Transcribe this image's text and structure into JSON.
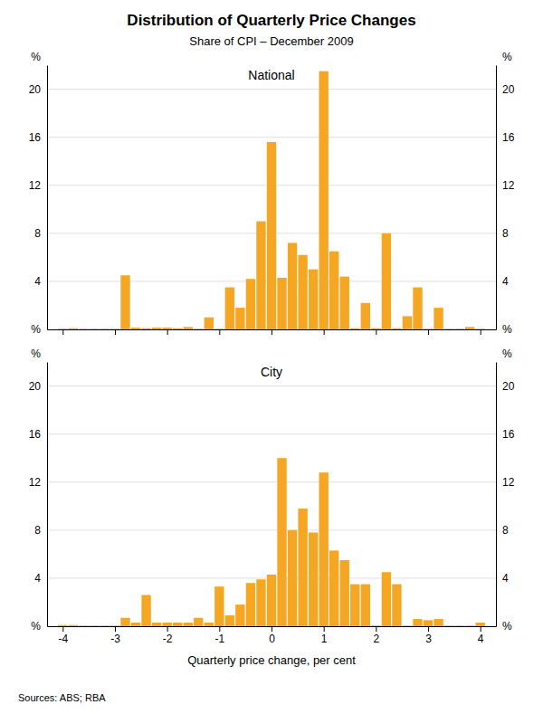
{
  "chart_data": [
    {
      "type": "bar",
      "title": "Distribution of Quarterly Price Changes",
      "subtitle": "Share of CPI – December 2009",
      "x": [
        -4.0,
        -3.8,
        -3.6,
        -3.4,
        -3.2,
        -3.0,
        -2.8,
        -2.6,
        -2.4,
        -2.2,
        -2.0,
        -1.8,
        -1.6,
        -1.4,
        -1.2,
        -1.0,
        -0.8,
        -0.6,
        -0.4,
        -0.2,
        0.0,
        0.2,
        0.4,
        0.6,
        0.8,
        1.0,
        1.2,
        1.4,
        1.6,
        1.8,
        2.0,
        2.2,
        2.4,
        2.6,
        2.8,
        3.0,
        3.2,
        3.4,
        3.6,
        3.8,
        4.0
      ],
      "series": [
        {
          "name": "National",
          "color": "#F5A623",
          "values": [
            0.05,
            0.1,
            0.05,
            0.05,
            0.05,
            0.05,
            4.5,
            0.15,
            0.1,
            0.15,
            0.15,
            0.1,
            0.2,
            0.05,
            1.0,
            0.05,
            3.5,
            1.8,
            4.2,
            9.0,
            15.6,
            4.3,
            7.2,
            6.2,
            5.0,
            21.5,
            6.5,
            4.4,
            0.1,
            2.2,
            0.1,
            8.0,
            0.1,
            1.1,
            3.5,
            0.05,
            1.8,
            0.05,
            0.05,
            0.2,
            0.05
          ]
        }
      ],
      "xlim": [
        -4.3,
        4.3
      ],
      "xticks": [
        -4,
        -3,
        -2,
        -1,
        0,
        1,
        2,
        3,
        4
      ],
      "ylim": [
        0,
        22
      ],
      "yticks": [
        {
          "value": 0,
          "label": "%"
        },
        4,
        8,
        12,
        16,
        20
      ],
      "ylabel": "%",
      "y2lim": [
        0,
        22
      ],
      "y2ticks": [
        {
          "value": 0,
          "label": "%"
        },
        4,
        8,
        12,
        16,
        20
      ],
      "y2label": "%",
      "grid": true,
      "tick_labels": "y"
    },
    {
      "type": "bar",
      "x": [
        -4.0,
        -3.8,
        -3.6,
        -3.4,
        -3.2,
        -3.0,
        -2.8,
        -2.6,
        -2.4,
        -2.2,
        -2.0,
        -1.8,
        -1.6,
        -1.4,
        -1.2,
        -1.0,
        -0.8,
        -0.6,
        -0.4,
        -0.2,
        0.0,
        0.2,
        0.4,
        0.6,
        0.8,
        1.0,
        1.2,
        1.4,
        1.6,
        1.8,
        2.0,
        2.2,
        2.4,
        2.6,
        2.8,
        3.0,
        3.2,
        3.4,
        3.6,
        3.8,
        4.0
      ],
      "series": [
        {
          "name": "City",
          "color": "#F5A623",
          "values": [
            0.1,
            0.1,
            0.05,
            0.05,
            0.05,
            0.05,
            0.7,
            0.3,
            2.6,
            0.3,
            0.3,
            0.3,
            0.3,
            0.7,
            0.3,
            3.3,
            0.9,
            1.8,
            3.6,
            3.9,
            4.3,
            14.0,
            8.0,
            9.8,
            7.8,
            12.8,
            6.3,
            5.5,
            3.5,
            3.5,
            0.05,
            4.5,
            3.5,
            0.05,
            0.6,
            0.5,
            0.6,
            0.05,
            0.05,
            0.05,
            0.3
          ]
        }
      ],
      "xlim": [
        -4.3,
        4.3
      ],
      "xticks": [
        -4,
        -3,
        -2,
        -1,
        0,
        1,
        2,
        3,
        4
      ],
      "xlabel": "Quarterly price change, per cent",
      "ylim": [
        0,
        22
      ],
      "yticks": [
        {
          "value": 0,
          "label": "%"
        },
        4,
        8,
        12,
        16,
        20
      ],
      "ylabel": "%",
      "y2lim": [
        0,
        22
      ],
      "y2ticks": [
        {
          "value": 0,
          "label": "%"
        },
        4,
        8,
        12,
        16,
        20
      ],
      "y2label": "%",
      "grid": true,
      "source": "Sources: ABS; RBA"
    }
  ]
}
